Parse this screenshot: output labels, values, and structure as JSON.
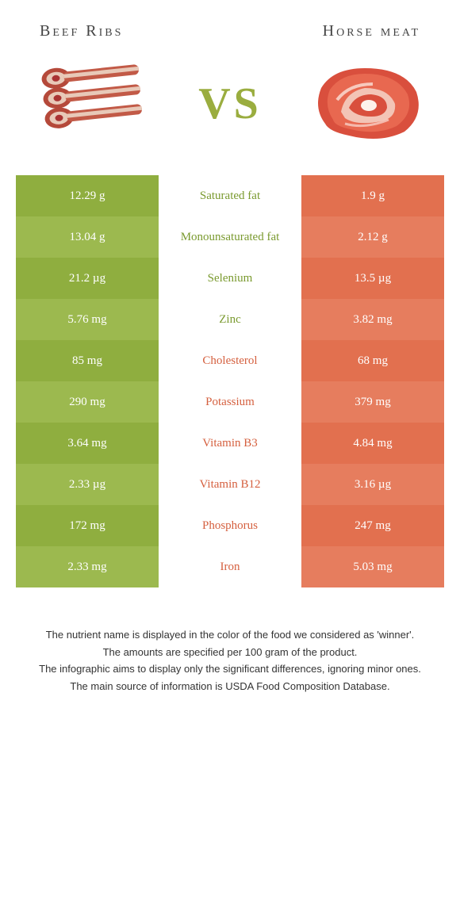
{
  "header": {
    "left": "Beef Ribs",
    "right": "Horse meat"
  },
  "vs": "VS",
  "colors": {
    "green": "#8fae3f",
    "green_alt": "#9cb94f",
    "orange": "#e2704f",
    "orange_alt": "#e67d5e",
    "label_green": "#7a9a2f",
    "label_orange": "#d5603f"
  },
  "rows": [
    {
      "label": "Saturated fat",
      "left": "12.29 g",
      "right": "1.9 g",
      "winner": "left"
    },
    {
      "label": "Monounsaturated fat",
      "left": "13.04 g",
      "right": "2.12 g",
      "winner": "left"
    },
    {
      "label": "Selenium",
      "left": "21.2 µg",
      "right": "13.5 µg",
      "winner": "left"
    },
    {
      "label": "Zinc",
      "left": "5.76 mg",
      "right": "3.82 mg",
      "winner": "left"
    },
    {
      "label": "Cholesterol",
      "left": "85 mg",
      "right": "68 mg",
      "winner": "right"
    },
    {
      "label": "Potassium",
      "left": "290 mg",
      "right": "379 mg",
      "winner": "right"
    },
    {
      "label": "Vitamin B3",
      "left": "3.64 mg",
      "right": "4.84 mg",
      "winner": "right"
    },
    {
      "label": "Vitamin B12",
      "left": "2.33 µg",
      "right": "3.16 µg",
      "winner": "right"
    },
    {
      "label": "Phosphorus",
      "left": "172 mg",
      "right": "247 mg",
      "winner": "right"
    },
    {
      "label": "Iron",
      "left": "2.33 mg",
      "right": "5.03 mg",
      "winner": "right"
    }
  ],
  "footer": [
    "The nutrient name is displayed in the color of the food we considered as 'winner'.",
    "The amounts are specified per 100 gram of the product.",
    "The infographic aims to display only the significant differences, ignoring minor ones.",
    "The main source of information is USDA Food Composition Database."
  ]
}
